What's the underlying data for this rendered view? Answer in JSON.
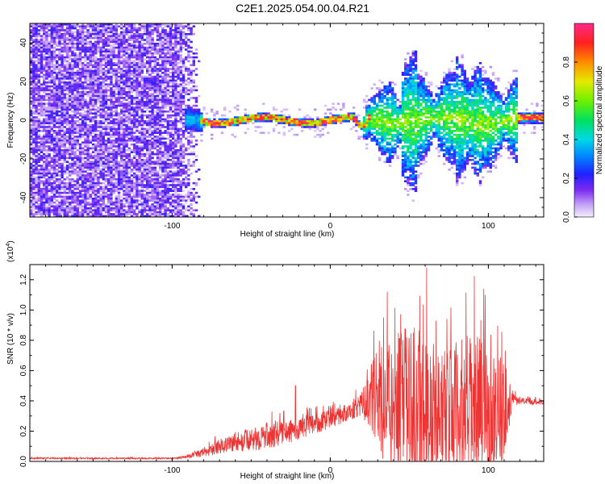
{
  "title": "C2E1.2025.054.00.04.R21",
  "chart_data": [
    {
      "type": "heatmap",
      "xlabel": "Height of straight line (km)",
      "ylabel": "Frequency (Hz)",
      "xlim": [
        -190,
        135
      ],
      "ylim": [
        -50,
        50
      ],
      "xticks": [
        -100,
        0,
        100
      ],
      "yticks": [
        -40,
        -20,
        0,
        20,
        40
      ],
      "colorbar": {
        "label": "Normalized spectral amplitude",
        "range": [
          0,
          1
        ],
        "ticks": [
          0.0,
          0.2,
          0.4,
          0.6,
          0.8
        ]
      },
      "features": {
        "noise_region_km": [
          -190,
          -82
        ],
        "carrier_track_km": [
          -90,
          20
        ],
        "carrier_frequency_hz": 0,
        "spread_region_km": [
          20,
          135
        ],
        "spread_frequency_hz": [
          -30,
          40
        ]
      }
    },
    {
      "type": "line",
      "xlabel": "Height of straight line (km)",
      "ylabel": "SNR (10 * v/v)",
      "exponent_label": "(x10^4)",
      "xlim": [
        -190,
        135
      ],
      "ylim": [
        0,
        1.3
      ],
      "xticks": [
        -100,
        0,
        100
      ],
      "yticks": [
        0.0,
        0.2,
        0.4,
        0.6,
        0.8,
        1.0,
        1.2
      ],
      "series_color": "#ee3333",
      "envelope": {
        "x": [
          -190,
          -100,
          -90,
          -80,
          -70,
          -60,
          -50,
          -40,
          -30,
          -20,
          -10,
          0,
          10,
          20,
          25,
          30,
          40,
          50,
          60,
          70,
          80,
          90,
          100,
          110,
          115,
          120,
          135
        ],
        "y": [
          0.02,
          0.02,
          0.03,
          0.06,
          0.1,
          0.13,
          0.14,
          0.17,
          0.19,
          0.21,
          0.25,
          0.28,
          0.32,
          0.38,
          0.42,
          0.4,
          0.38,
          0.36,
          0.33,
          0.33,
          0.34,
          0.35,
          0.33,
          0.35,
          0.4,
          0.4,
          0.39
        ],
        "amplitude": [
          0.005,
          0.005,
          0.01,
          0.03,
          0.05,
          0.07,
          0.07,
          0.09,
          0.08,
          0.07,
          0.07,
          0.06,
          0.06,
          0.08,
          0.2,
          0.35,
          0.45,
          0.55,
          0.55,
          0.4,
          0.45,
          0.5,
          0.45,
          0.35,
          0.05,
          0.02,
          0.02
        ]
      },
      "spikes": [
        {
          "x": -22,
          "y": 0.5
        },
        {
          "x": 61,
          "y": 1.28
        },
        {
          "x": 98,
          "y": 1.1
        }
      ]
    }
  ]
}
